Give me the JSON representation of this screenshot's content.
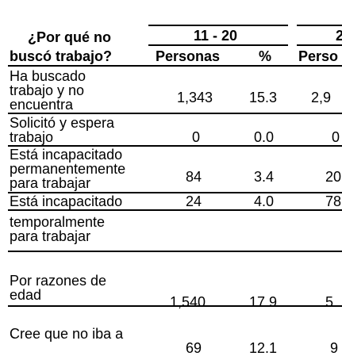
{
  "header": {
    "question_line1": "¿Por qué no",
    "question_line2": "buscó trabajo?",
    "group1": "11 - 20",
    "group2": "2",
    "col_personas": "Personas",
    "col_pct": "%",
    "col_personas_cut": "Perso"
  },
  "rows": [
    {
      "label": [
        "Ha buscado",
        "trabajo y no",
        "encuentra"
      ],
      "personas": "1,343",
      "pct": "15.3",
      "next": "2,9"
    },
    {
      "label": [
        "Solicitó y espera",
        "trabajo"
      ],
      "personas": "0",
      "pct": "0.0",
      "next": "0"
    },
    {
      "label": [
        "Está incapacitado",
        "permanentemente",
        "para trabajar"
      ],
      "personas": "84",
      "pct": "3.4",
      "next": "20"
    },
    {
      "label": [
        "Está incapacitado"
      ],
      "personas": "24",
      "pct": "4.0",
      "next": "78"
    },
    {
      "label": [
        "temporalmente",
        "para trabajar"
      ],
      "personas": "",
      "pct": "",
      "next": ""
    },
    {
      "label": [
        "Por razones de",
        "edad"
      ],
      "personas": "1,540",
      "pct": "17.9",
      "next": "5"
    },
    {
      "label": [
        "Cree que no iba a"
      ],
      "personas": "69",
      "pct": "12.1",
      "next": "9"
    }
  ]
}
